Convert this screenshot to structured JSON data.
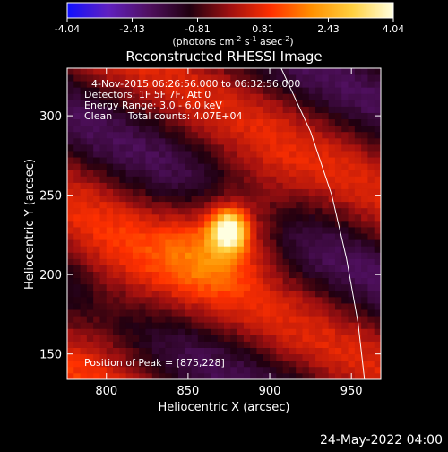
{
  "colorbar": {
    "ticks": [
      "-4.04",
      "-2.43",
      "-0.81",
      "0.81",
      "2.43",
      "4.04"
    ],
    "unit_label": "(photons cm",
    "unit_sup1": "-2",
    "unit_mid": " s",
    "unit_sup2": "-1",
    "unit_mid2": " asec",
    "unit_sup3": "-2",
    "unit_end": ")",
    "range": [
      -4.04,
      4.04
    ],
    "colors": [
      "#1010ff",
      "#6020c0",
      "#501060",
      "#200010",
      "#a01010",
      "#ff3000",
      "#ff9000",
      "#ffd040",
      "#ffffe0"
    ]
  },
  "chart_data": {
    "type": "heatmap",
    "title": "Reconstructed RHESSI Image",
    "xlabel": "Heliocentric X (arcsec)",
    "ylabel": "Heliocentric Y (arcsec)",
    "xlim": [
      776,
      968
    ],
    "ylim": [
      134,
      330
    ],
    "xticks": [
      800,
      850,
      900,
      950
    ],
    "yticks": [
      150,
      200,
      250,
      300
    ],
    "peak": [
      875,
      228
    ],
    "limb": [
      [
        907,
        330
      ],
      [
        925,
        290
      ],
      [
        938,
        250
      ],
      [
        947,
        210
      ],
      [
        954,
        170
      ],
      [
        958,
        134
      ]
    ],
    "annotations": {
      "time": "4-Nov-2015 06:26:56.000 to 06:32:56.000",
      "detectors": "Detectors: 1F 5F 7F, Att 0",
      "energy": "Energy Range: 3.0 - 6.0 keV",
      "clean": "Clean     Total counts: 4.07E+04",
      "peak": "Position of Peak = [875,228]"
    }
  },
  "footer": {
    "date": "24-May-2022 04:00"
  }
}
